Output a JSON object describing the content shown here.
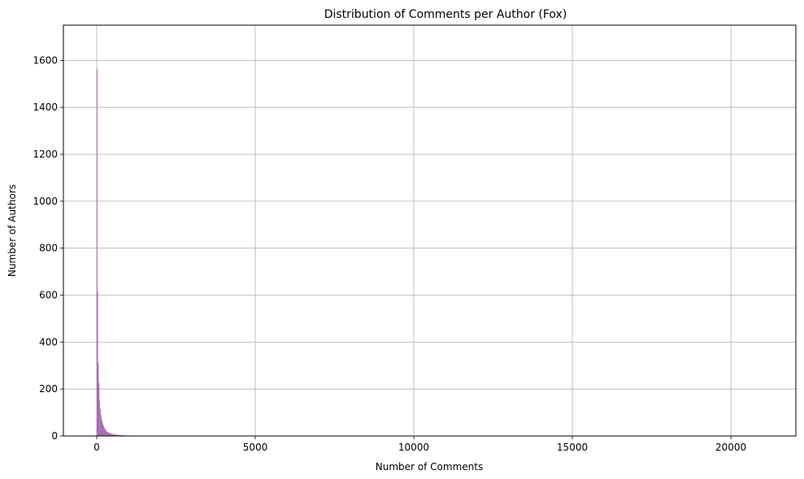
{
  "chart_data": {
    "type": "bar",
    "title": "Distribution of Comments per Author (Fox)",
    "xlabel": "Number of Comments",
    "ylabel": "Number of Authors",
    "xlim": [
      -1050,
      22050
    ],
    "ylim": [
      0,
      1750
    ],
    "xticks": [
      0,
      5000,
      10000,
      15000,
      20000
    ],
    "yticks": [
      0,
      200,
      400,
      600,
      800,
      1000,
      1200,
      1400,
      1600
    ],
    "grid": true,
    "bin_width": 21,
    "series": [
      {
        "color": "#9b4fa6",
        "bins": [
          [
            0,
            1565
          ],
          [
            21,
            615
          ],
          [
            42,
            310
          ],
          [
            63,
            225
          ],
          [
            84,
            150
          ],
          [
            105,
            115
          ],
          [
            126,
            90
          ],
          [
            147,
            72
          ],
          [
            168,
            60
          ],
          [
            189,
            50
          ],
          [
            210,
            42
          ],
          [
            231,
            36
          ],
          [
            252,
            30
          ],
          [
            273,
            26
          ],
          [
            294,
            22
          ],
          [
            315,
            19
          ],
          [
            336,
            17
          ],
          [
            357,
            15
          ],
          [
            378,
            13
          ],
          [
            399,
            12
          ],
          [
            420,
            11
          ],
          [
            441,
            10
          ],
          [
            462,
            9
          ],
          [
            483,
            8
          ],
          [
            504,
            8
          ],
          [
            525,
            7
          ],
          [
            546,
            7
          ],
          [
            567,
            6
          ],
          [
            588,
            6
          ],
          [
            609,
            5
          ],
          [
            630,
            5
          ],
          [
            651,
            5
          ],
          [
            672,
            4
          ],
          [
            693,
            4
          ],
          [
            714,
            4
          ],
          [
            735,
            4
          ],
          [
            756,
            3
          ],
          [
            777,
            3
          ],
          [
            798,
            3
          ],
          [
            819,
            3
          ],
          [
            840,
            3
          ],
          [
            861,
            2
          ],
          [
            882,
            2
          ],
          [
            903,
            2
          ],
          [
            924,
            2
          ],
          [
            945,
            2
          ],
          [
            966,
            2
          ],
          [
            987,
            2
          ],
          [
            1008,
            2
          ],
          [
            1050,
            2
          ],
          [
            1092,
            2
          ],
          [
            1134,
            1
          ],
          [
            1176,
            2
          ],
          [
            1218,
            1
          ],
          [
            1260,
            1
          ],
          [
            1302,
            1
          ],
          [
            1344,
            1
          ],
          [
            1386,
            1
          ],
          [
            1428,
            1
          ],
          [
            1470,
            1
          ],
          [
            1512,
            1
          ],
          [
            1575,
            1
          ],
          [
            1638,
            1
          ],
          [
            1701,
            1
          ],
          [
            1764,
            1
          ],
          [
            1827,
            1
          ],
          [
            1911,
            1
          ],
          [
            1995,
            1
          ],
          [
            2079,
            1
          ],
          [
            2163,
            1
          ],
          [
            2247,
            1
          ],
          [
            2373,
            1
          ],
          [
            2499,
            1
          ],
          [
            2646,
            1
          ],
          [
            2814,
            1
          ],
          [
            3024,
            1
          ],
          [
            3276,
            1
          ],
          [
            3570,
            1
          ],
          [
            3948,
            1
          ],
          [
            4410,
            1
          ],
          [
            4914,
            1
          ]
        ]
      }
    ]
  }
}
